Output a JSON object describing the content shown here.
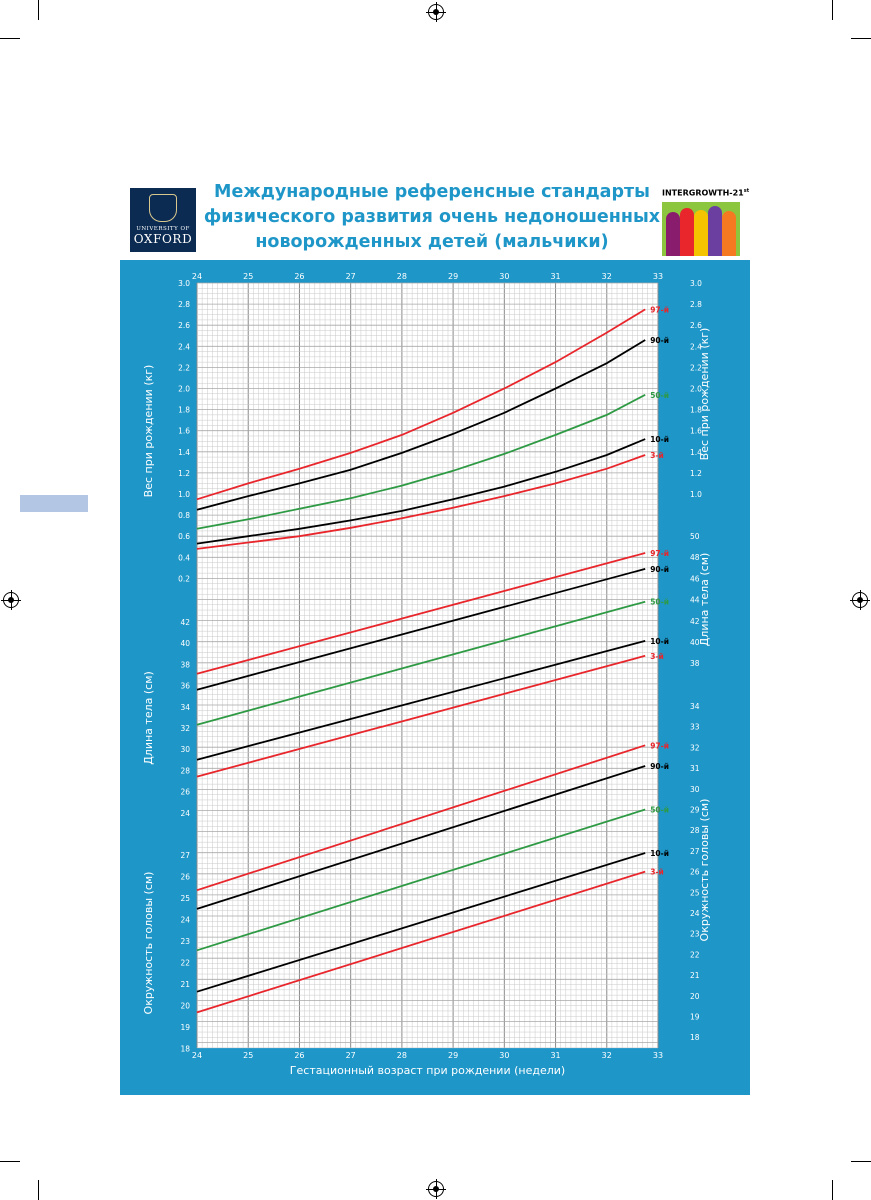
{
  "header": {
    "title_lines": [
      "Международные референсные  стандарты",
      "физического развития очень недоношенных",
      "новорожденных детей (мальчики)"
    ],
    "logo": {
      "university_of": "UNIVERSITY OF",
      "name": "OXFORD"
    },
    "project_label": "INTERGROWTH-21",
    "project_label_sup": "st"
  },
  "colors": {
    "panel_blue": "#1e96c8",
    "red": "#e8262c",
    "green": "#2e9a44",
    "black": "#000000",
    "grid": "#c9c9c9"
  },
  "chart_data": {
    "type": "line",
    "title": "Международные референсные  стандарты физического развития очень недоношенных новорожденных детей (мальчики)",
    "xlabel": "Гестационный возраст при рождении (недели)",
    "x_ticks": [
      24,
      25,
      26,
      27,
      28,
      29,
      30,
      31,
      32,
      33
    ],
    "x_range": [
      24,
      33
    ],
    "percentile_labels": [
      "97-й",
      "90-й",
      "50-й",
      "10-й",
      "3-й"
    ],
    "percentile_colors": [
      "#e8262c",
      "#000000",
      "#2e9a44",
      "#000000",
      "#e8262c"
    ],
    "panels": [
      {
        "ylabel": "Вес при рождении (кг)",
        "ylabel_right": "Вес при рождении (кг)",
        "left_ticks": [
          "3.0",
          "2.8",
          "2.6",
          "2.4",
          "2.2",
          "2.0",
          "1.8",
          "1.6",
          "1.4",
          "1.2",
          "1.0",
          "0.8",
          "0.6",
          "0.4",
          "0.2"
        ],
        "right_ticks": [
          "3.0",
          "2.8",
          "2.6",
          "2.4",
          "2.2",
          "2.0",
          "1.8",
          "1.6",
          "1.4",
          "1.2",
          "1.0"
        ],
        "ylim": [
          0,
          3.0
        ],
        "series": [
          {
            "name": "97-й",
            "x": [
              24,
              25,
              26,
              27,
              28,
              29,
              30,
              31,
              32,
              32.75
            ],
            "y": [
              0.95,
              1.1,
              1.24,
              1.39,
              1.56,
              1.77,
              2.0,
              2.25,
              2.53,
              2.75
            ]
          },
          {
            "name": "90-й",
            "x": [
              24,
              25,
              26,
              27,
              28,
              29,
              30,
              31,
              32,
              32.75
            ],
            "y": [
              0.85,
              0.98,
              1.1,
              1.23,
              1.39,
              1.57,
              1.77,
              2.0,
              2.24,
              2.46
            ]
          },
          {
            "name": "50-й",
            "x": [
              24,
              25,
              26,
              27,
              28,
              29,
              30,
              31,
              32,
              32.75
            ],
            "y": [
              0.67,
              0.76,
              0.86,
              0.96,
              1.08,
              1.22,
              1.38,
              1.56,
              1.75,
              1.94
            ]
          },
          {
            "name": "10-й",
            "x": [
              24,
              25,
              26,
              27,
              28,
              29,
              30,
              31,
              32,
              32.75
            ],
            "y": [
              0.53,
              0.6,
              0.67,
              0.75,
              0.84,
              0.95,
              1.07,
              1.21,
              1.37,
              1.52
            ]
          },
          {
            "name": "3-й",
            "x": [
              24,
              25,
              26,
              27,
              28,
              29,
              30,
              31,
              32,
              32.75
            ],
            "y": [
              0.48,
              0.54,
              0.6,
              0.68,
              0.77,
              0.87,
              0.98,
              1.1,
              1.24,
              1.37
            ]
          }
        ]
      },
      {
        "ylabel": "Длина тела (см)",
        "ylabel_right": "Длина тела (см)",
        "left_ticks": [
          "42",
          "40",
          "38",
          "36",
          "34",
          "32",
          "30",
          "28",
          "26",
          "24"
        ],
        "right_ticks": [
          "50",
          "48",
          "46",
          "44",
          "42",
          "40",
          "38"
        ],
        "ylim": [
          22,
          44
        ],
        "series": [
          {
            "name": "97-й",
            "x": [
              24,
              32.75
            ],
            "y": [
              37.0,
              48.4
            ]
          },
          {
            "name": "90-й",
            "x": [
              24,
              32.75
            ],
            "y": [
              35.5,
              46.9
            ]
          },
          {
            "name": "50-й",
            "x": [
              24,
              32.75
            ],
            "y": [
              32.2,
              43.8
            ]
          },
          {
            "name": "10-й",
            "x": [
              24,
              32.75
            ],
            "y": [
              28.9,
              40.1
            ]
          },
          {
            "name": "3-й",
            "x": [
              24,
              32.75
            ],
            "y": [
              27.3,
              38.7
            ]
          }
        ]
      },
      {
        "ylabel": "Окружность головы (см)",
        "ylabel_right": "Окружность головы (см)",
        "left_ticks": [
          "27",
          "26",
          "25",
          "24",
          "23",
          "22",
          "21",
          "20",
          "19",
          "18"
        ],
        "right_ticks": [
          "34",
          "33",
          "32",
          "31",
          "30",
          "29",
          "28",
          "27",
          "26",
          "25",
          "24",
          "23",
          "22",
          "21",
          "20",
          "19",
          "18"
        ],
        "ylim": [
          18,
          34
        ],
        "series": [
          {
            "name": "97-й",
            "x": [
              24,
              32.75
            ],
            "y": [
              25.1,
              32.1
            ]
          },
          {
            "name": "90-й",
            "x": [
              24,
              32.75
            ],
            "y": [
              24.2,
              31.1
            ]
          },
          {
            "name": "50-й",
            "x": [
              24,
              32.75
            ],
            "y": [
              22.2,
              29.0
            ]
          },
          {
            "name": "10-й",
            "x": [
              24,
              32.75
            ],
            "y": [
              20.2,
              26.9
            ]
          },
          {
            "name": "3-й",
            "x": [
              24,
              32.75
            ],
            "y": [
              19.2,
              26.0
            ]
          }
        ]
      }
    ]
  }
}
